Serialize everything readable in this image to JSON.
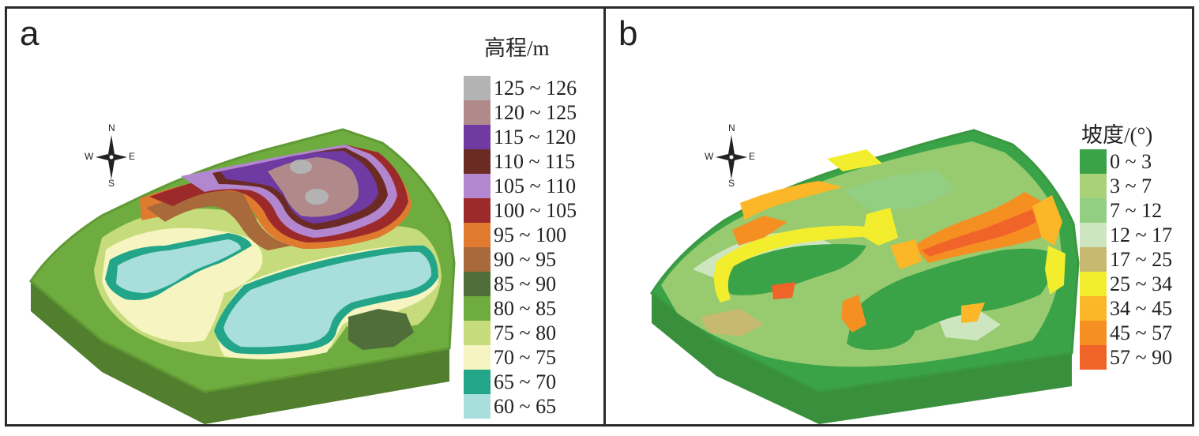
{
  "panels": {
    "a": {
      "label": "a",
      "legend_title": "高程/m",
      "compass": {
        "n": "N",
        "s": "S",
        "e": "E",
        "w": "W"
      },
      "legend": [
        {
          "label": "125 ~ 126",
          "color": "#b3b3b3"
        },
        {
          "label": "120 ~ 125",
          "color": "#b08a8a"
        },
        {
          "label": "115 ~ 120",
          "color": "#6f3aa1"
        },
        {
          "label": "110 ~ 115",
          "color": "#6b2b24"
        },
        {
          "label": "105 ~ 110",
          "color": "#b287cf"
        },
        {
          "label": "100 ~ 105",
          "color": "#9c2a2a"
        },
        {
          "label": "95 ~ 100",
          "color": "#e07a2e"
        },
        {
          "label": "90 ~ 95",
          "color": "#a86a3a"
        },
        {
          "label": "85 ~ 90",
          "color": "#4f6e3a"
        },
        {
          "label": "80 ~ 85",
          "color": "#6fac3f"
        },
        {
          "label": "75 ~ 80",
          "color": "#c6dc7c"
        },
        {
          "label": "70 ~ 75",
          "color": "#f6f5c1"
        },
        {
          "label": "65 ~ 70",
          "color": "#22a588"
        },
        {
          "label": "60 ~ 65",
          "color": "#a8dedc"
        }
      ]
    },
    "b": {
      "label": "b",
      "legend_title": "坡度/(°)",
      "compass": {
        "n": "N",
        "s": "S",
        "e": "E",
        "w": "W"
      },
      "legend": [
        {
          "label": "0 ~ 3",
          "color": "#3aa347"
        },
        {
          "label": "3 ~ 7",
          "color": "#a9d178"
        },
        {
          "label": "7 ~ 12",
          "color": "#93cf82"
        },
        {
          "label": "12 ~ 17",
          "color": "#cde6c0"
        },
        {
          "label": "17 ~ 25",
          "color": "#c7b970"
        },
        {
          "label": "25 ~ 34",
          "color": "#f2ee2e"
        },
        {
          "label": "34 ~ 45",
          "color": "#fbb727"
        },
        {
          "label": "45 ~ 57",
          "color": "#f58f22"
        },
        {
          "label": "57 ~ 90",
          "color": "#f0642a"
        }
      ]
    }
  }
}
